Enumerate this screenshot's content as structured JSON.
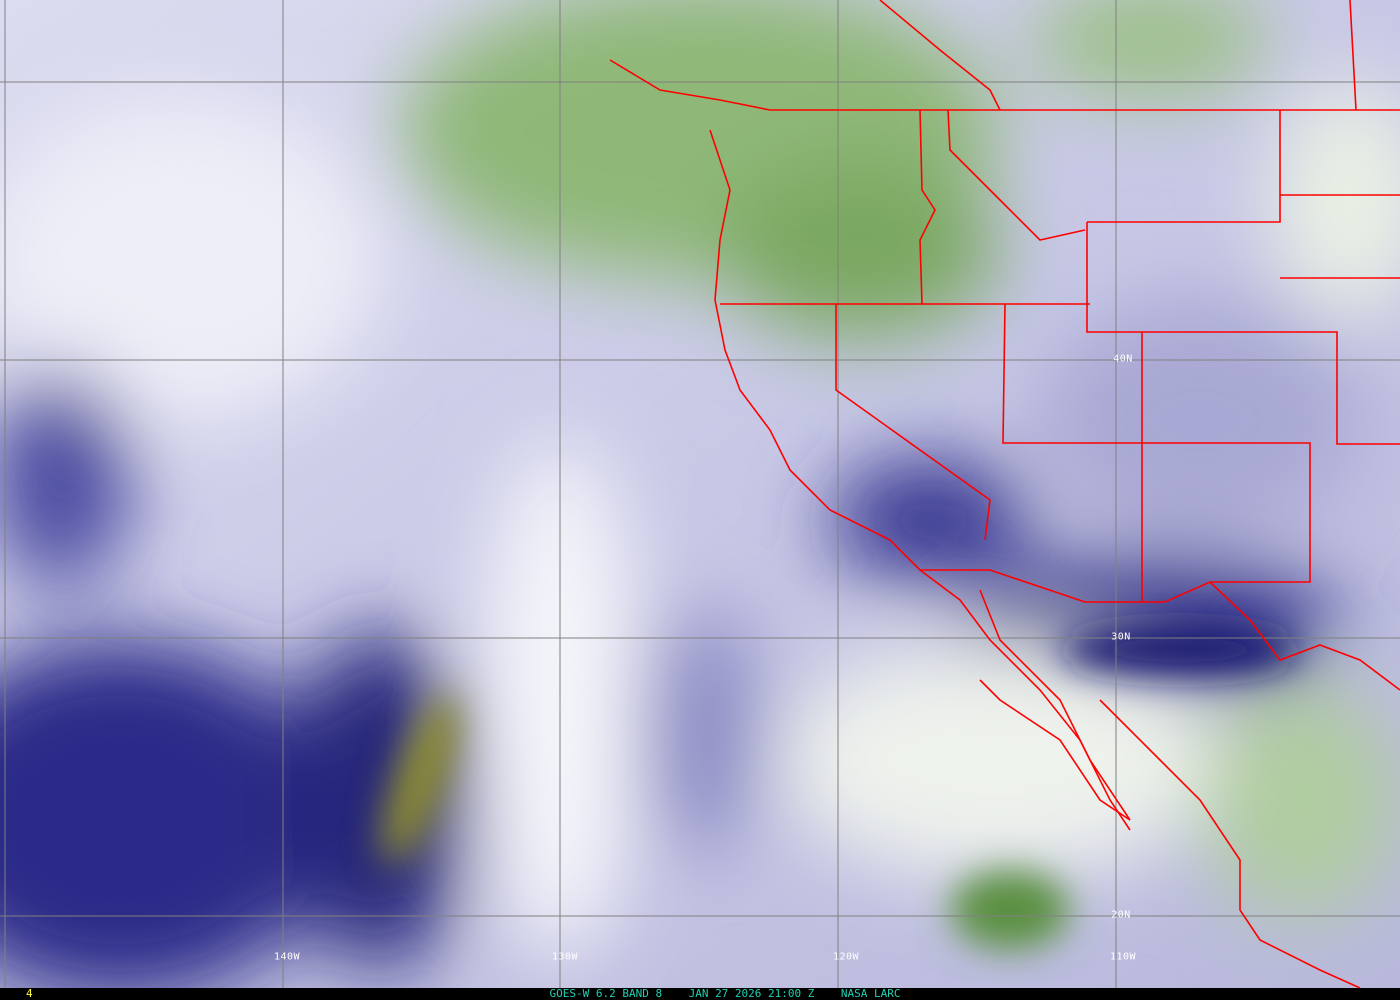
{
  "image": {
    "satellite": "GOES-W",
    "caption": "GOES-W 6.2 BAND 8    JAN 27 2026 21:00 Z    NASA LARC",
    "frame_number": "4",
    "colors": {
      "border": "#ff0000",
      "grid": "#808080",
      "caption": "#20d0b0",
      "frame_number": "#ffff40",
      "dry": "#1a1a7a",
      "moist": "#3a7a20",
      "very_dry": "#8a8a30"
    }
  },
  "grid": {
    "longitudes": [
      "140W",
      "130W",
      "120W",
      "110W"
    ],
    "latitudes": [
      "40N",
      "30N",
      "20N"
    ]
  }
}
